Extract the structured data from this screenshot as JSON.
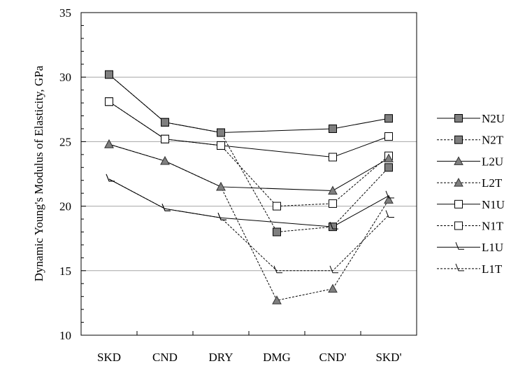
{
  "chart_data": {
    "type": "line",
    "title": "",
    "xlabel": "",
    "ylabel": "Dynamic Young's Modulus of Elasticity, GPa",
    "categories": [
      "SKD",
      "CND",
      "DRY",
      "DMG",
      "CND'",
      "SKD'"
    ],
    "ylim": [
      10,
      35
    ],
    "yticks": [
      10,
      15,
      20,
      25,
      30,
      35
    ],
    "grid": true,
    "legend_position": "right",
    "series": [
      {
        "name": "N2U",
        "marker": "square-filled",
        "line": "solid",
        "points": [
          [
            0,
            30.2
          ],
          [
            1,
            26.5
          ],
          [
            2,
            25.7
          ],
          [
            4,
            26.0
          ],
          [
            5,
            26.8
          ]
        ]
      },
      {
        "name": "N2T",
        "marker": "square-filled",
        "line": "dashed",
        "points": [
          [
            0,
            30.2
          ],
          [
            1,
            26.5
          ],
          [
            2,
            25.7
          ],
          [
            3,
            18.0
          ],
          [
            4,
            18.4
          ],
          [
            5,
            23.0
          ]
        ]
      },
      {
        "name": "L2U",
        "marker": "triangle-filled",
        "line": "solid",
        "points": [
          [
            0,
            24.8
          ],
          [
            1,
            23.5
          ],
          [
            2,
            21.5
          ],
          [
            4,
            21.2
          ],
          [
            5,
            23.7
          ]
        ]
      },
      {
        "name": "L2T",
        "marker": "triangle-filled",
        "line": "dashed",
        "points": [
          [
            0,
            24.8
          ],
          [
            1,
            23.5
          ],
          [
            2,
            21.5
          ],
          [
            3,
            12.7
          ],
          [
            4,
            13.6
          ],
          [
            5,
            20.5
          ]
        ]
      },
      {
        "name": "N1U",
        "marker": "square-open",
        "line": "solid",
        "points": [
          [
            0,
            28.1
          ],
          [
            1,
            25.2
          ],
          [
            2,
            24.7
          ],
          [
            4,
            23.8
          ],
          [
            5,
            25.4
          ]
        ]
      },
      {
        "name": "N1T",
        "marker": "square-open",
        "line": "dashed",
        "points": [
          [
            0,
            28.1
          ],
          [
            1,
            25.2
          ],
          [
            2,
            24.7
          ],
          [
            3,
            20.0
          ],
          [
            4,
            20.2
          ],
          [
            5,
            23.9
          ]
        ]
      },
      {
        "name": "L1U",
        "marker": "tick-open",
        "line": "solid",
        "points": [
          [
            0,
            22.1
          ],
          [
            1,
            19.8
          ],
          [
            2,
            19.1
          ],
          [
            4,
            18.4
          ],
          [
            5,
            20.8
          ]
        ]
      },
      {
        "name": "L1T",
        "marker": "tick-open",
        "line": "dashed",
        "points": [
          [
            0,
            22.1
          ],
          [
            1,
            19.8
          ],
          [
            2,
            19.1
          ],
          [
            3,
            15.0
          ],
          [
            4,
            15.0
          ],
          [
            5,
            19.3
          ]
        ]
      }
    ]
  },
  "colors": {
    "filled_marker": "#7f7f7f",
    "line": "#000000",
    "grid": "#a6a6a6"
  }
}
